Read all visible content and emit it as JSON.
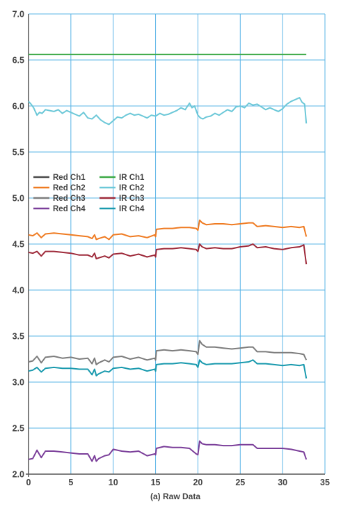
{
  "chart_data": {
    "type": "line",
    "xlabel": "(a) Raw Data",
    "ylabel": "",
    "xlim": [
      0,
      35
    ],
    "ylim": [
      2.0,
      7.0
    ],
    "xticks": [
      0,
      5,
      10,
      15,
      20,
      25,
      30,
      35
    ],
    "yticks": [
      2.0,
      2.5,
      3.0,
      3.5,
      4.0,
      4.5,
      5.0,
      5.5,
      6.0,
      6.5,
      7.0
    ],
    "grid": true,
    "legend_position": "left-middle",
    "series": [
      {
        "name": "Red Ch1",
        "color": "#4a4a4a",
        "x": [],
        "y": []
      },
      {
        "name": "Red Ch2",
        "color": "#ef7b22",
        "x": [
          0,
          0.5,
          1,
          1.5,
          2,
          3,
          4,
          5,
          6,
          7,
          7.5,
          7.8,
          8,
          8.3,
          9,
          9.5,
          10,
          11,
          12,
          13,
          14,
          14.9,
          15,
          15.1,
          16,
          17,
          18,
          19,
          19.8,
          20,
          20.2,
          20.5,
          21,
          22,
          23,
          24,
          25,
          26,
          26.5,
          27,
          28,
          29,
          30,
          31,
          32,
          32.5,
          32.8
        ],
        "y": [
          4.6,
          4.59,
          4.62,
          4.57,
          4.61,
          4.62,
          4.61,
          4.6,
          4.59,
          4.58,
          4.56,
          4.6,
          4.55,
          4.56,
          4.58,
          4.55,
          4.6,
          4.61,
          4.58,
          4.59,
          4.57,
          4.6,
          4.58,
          4.66,
          4.67,
          4.67,
          4.68,
          4.68,
          4.67,
          4.65,
          4.76,
          4.73,
          4.71,
          4.72,
          4.72,
          4.71,
          4.72,
          4.73,
          4.73,
          4.69,
          4.7,
          4.69,
          4.68,
          4.69,
          4.68,
          4.69,
          4.58
        ]
      },
      {
        "name": "Red Ch3",
        "color": "#7d7d7d",
        "x": [
          0,
          0.5,
          1,
          1.5,
          2,
          3,
          4,
          5,
          6,
          7,
          7.5,
          7.8,
          8,
          8.3,
          9,
          9.5,
          10,
          11,
          12,
          13,
          14,
          14.9,
          15,
          15.1,
          16,
          17,
          18,
          19,
          19.8,
          20,
          20.2,
          20.5,
          21,
          22,
          23,
          24,
          25,
          26,
          26.5,
          27,
          28,
          29,
          30,
          31,
          32,
          32.5,
          32.8
        ],
        "y": [
          3.22,
          3.23,
          3.28,
          3.21,
          3.27,
          3.28,
          3.26,
          3.27,
          3.25,
          3.26,
          3.2,
          3.26,
          3.19,
          3.21,
          3.24,
          3.22,
          3.27,
          3.28,
          3.25,
          3.27,
          3.24,
          3.26,
          3.24,
          3.34,
          3.35,
          3.34,
          3.35,
          3.34,
          3.33,
          3.3,
          3.45,
          3.41,
          3.38,
          3.38,
          3.37,
          3.36,
          3.37,
          3.38,
          3.38,
          3.33,
          3.33,
          3.32,
          3.32,
          3.32,
          3.31,
          3.3,
          3.24
        ]
      },
      {
        "name": "Red Ch4",
        "color": "#7b3f9a",
        "x": [
          0,
          0.5,
          1,
          1.5,
          2,
          3,
          4,
          5,
          6,
          7,
          7.5,
          7.8,
          8,
          8.3,
          9,
          9.5,
          10,
          11,
          12,
          13,
          14,
          14.9,
          15,
          15.1,
          16,
          17,
          18,
          19,
          19.8,
          20,
          20.2,
          20.5,
          21,
          22,
          23,
          24,
          25,
          26,
          26.5,
          27,
          28,
          29,
          30,
          31,
          32,
          32.5,
          32.8
        ],
        "y": [
          2.16,
          2.17,
          2.26,
          2.18,
          2.25,
          2.25,
          2.24,
          2.23,
          2.22,
          2.22,
          2.14,
          2.2,
          2.14,
          2.17,
          2.2,
          2.21,
          2.27,
          2.25,
          2.24,
          2.25,
          2.2,
          2.22,
          2.21,
          2.28,
          2.3,
          2.29,
          2.29,
          2.28,
          2.22,
          2.21,
          2.36,
          2.33,
          2.32,
          2.32,
          2.31,
          2.31,
          2.32,
          2.32,
          2.32,
          2.28,
          2.28,
          2.28,
          2.28,
          2.27,
          2.25,
          2.24,
          2.16
        ]
      },
      {
        "name": "IR Ch1",
        "color": "#3daa47",
        "x": [
          0,
          32.8
        ],
        "y": [
          6.56,
          6.56
        ]
      },
      {
        "name": "IR Ch2",
        "color": "#6cc8d8",
        "x": [
          0,
          0.3,
          0.6,
          1,
          1.3,
          1.6,
          2,
          2.5,
          3,
          3.5,
          4,
          4.5,
          5,
          5.5,
          6,
          6.5,
          7,
          7.5,
          8,
          8.5,
          9,
          9.5,
          10,
          10.5,
          11,
          11.5,
          12,
          12.5,
          13,
          13.5,
          14,
          14.5,
          15,
          15.5,
          16,
          16.5,
          17,
          17.5,
          18,
          18.5,
          19,
          19.3,
          19.6,
          20,
          20.3,
          20.6,
          21,
          21.5,
          22,
          22.5,
          23,
          23.5,
          24,
          24.5,
          25,
          25.5,
          26,
          26.5,
          27,
          27.5,
          28,
          28.5,
          29,
          29.5,
          30,
          30.5,
          31,
          31.5,
          32,
          32.3,
          32.6,
          32.8
        ],
        "y": [
          6.05,
          6.02,
          5.98,
          5.9,
          5.93,
          5.92,
          5.96,
          5.95,
          5.94,
          5.96,
          5.92,
          5.95,
          5.93,
          5.91,
          5.89,
          5.93,
          5.87,
          5.86,
          5.9,
          5.85,
          5.82,
          5.8,
          5.84,
          5.88,
          5.87,
          5.9,
          5.92,
          5.9,
          5.91,
          5.89,
          5.87,
          5.9,
          5.89,
          5.92,
          5.9,
          5.91,
          5.93,
          5.95,
          5.98,
          5.96,
          6.03,
          5.98,
          6.0,
          5.9,
          5.87,
          5.86,
          5.88,
          5.89,
          5.92,
          5.9,
          5.93,
          5.96,
          5.94,
          5.99,
          6.0,
          5.98,
          6.03,
          6.01,
          6.02,
          5.99,
          5.96,
          5.98,
          5.96,
          5.94,
          5.97,
          6.02,
          6.05,
          6.07,
          6.09,
          6.04,
          6.02,
          5.81
        ]
      },
      {
        "name": "IR Ch3",
        "color": "#9e2a3a",
        "x": [
          0,
          0.5,
          1,
          1.5,
          2,
          3,
          4,
          5,
          6,
          7,
          7.5,
          7.8,
          8,
          8.3,
          9,
          9.5,
          10,
          11,
          12,
          13,
          14,
          14.9,
          15,
          15.1,
          16,
          17,
          18,
          19,
          19.8,
          20,
          20.2,
          20.5,
          21,
          22,
          23,
          24,
          25,
          26,
          26.5,
          27,
          28,
          29,
          30,
          31,
          32,
          32.5,
          32.8
        ],
        "y": [
          4.41,
          4.4,
          4.42,
          4.37,
          4.42,
          4.42,
          4.41,
          4.4,
          4.38,
          4.38,
          4.36,
          4.4,
          4.34,
          4.35,
          4.37,
          4.35,
          4.39,
          4.4,
          4.37,
          4.39,
          4.36,
          4.38,
          4.36,
          4.44,
          4.45,
          4.45,
          4.46,
          4.45,
          4.44,
          4.42,
          4.5,
          4.47,
          4.45,
          4.46,
          4.45,
          4.45,
          4.47,
          4.48,
          4.5,
          4.46,
          4.47,
          4.45,
          4.44,
          4.46,
          4.47,
          4.49,
          4.28
        ]
      },
      {
        "name": "IR Ch4",
        "color": "#1a9aae",
        "x": [
          0,
          0.5,
          1,
          1.5,
          2,
          3,
          4,
          5,
          6,
          7,
          7.5,
          7.8,
          8,
          8.3,
          9,
          9.5,
          10,
          11,
          12,
          13,
          14,
          14.9,
          15,
          15.1,
          16,
          17,
          18,
          19,
          19.8,
          20,
          20.2,
          20.5,
          21,
          22,
          23,
          24,
          25,
          26,
          26.5,
          27,
          28,
          29,
          30,
          31,
          32,
          32.5,
          32.8
        ],
        "y": [
          3.12,
          3.13,
          3.16,
          3.11,
          3.15,
          3.16,
          3.15,
          3.15,
          3.14,
          3.14,
          3.08,
          3.14,
          3.07,
          3.09,
          3.12,
          3.11,
          3.15,
          3.16,
          3.14,
          3.15,
          3.12,
          3.14,
          3.12,
          3.19,
          3.2,
          3.2,
          3.21,
          3.2,
          3.19,
          3.16,
          3.24,
          3.21,
          3.19,
          3.2,
          3.2,
          3.2,
          3.21,
          3.22,
          3.24,
          3.2,
          3.2,
          3.19,
          3.18,
          3.19,
          3.18,
          3.19,
          3.04
        ]
      }
    ]
  },
  "legend": {
    "items": [
      {
        "label": "Red Ch1",
        "color": "#4a4a4a"
      },
      {
        "label": "Red Ch2",
        "color": "#ef7b22"
      },
      {
        "label": "Red Ch3",
        "color": "#7d7d7d"
      },
      {
        "label": "Red Ch4",
        "color": "#7b3f9a"
      },
      {
        "label": "IR Ch1",
        "color": "#3daa47"
      },
      {
        "label": "IR Ch2",
        "color": "#6cc8d8"
      },
      {
        "label": "IR Ch3",
        "color": "#9e2a3a"
      },
      {
        "label": "IR Ch4",
        "color": "#1a9aae"
      }
    ]
  },
  "colors": {
    "grid": "#5ab4e6",
    "axis": "#555555",
    "text": "#444444",
    "background": "#ffffff"
  }
}
